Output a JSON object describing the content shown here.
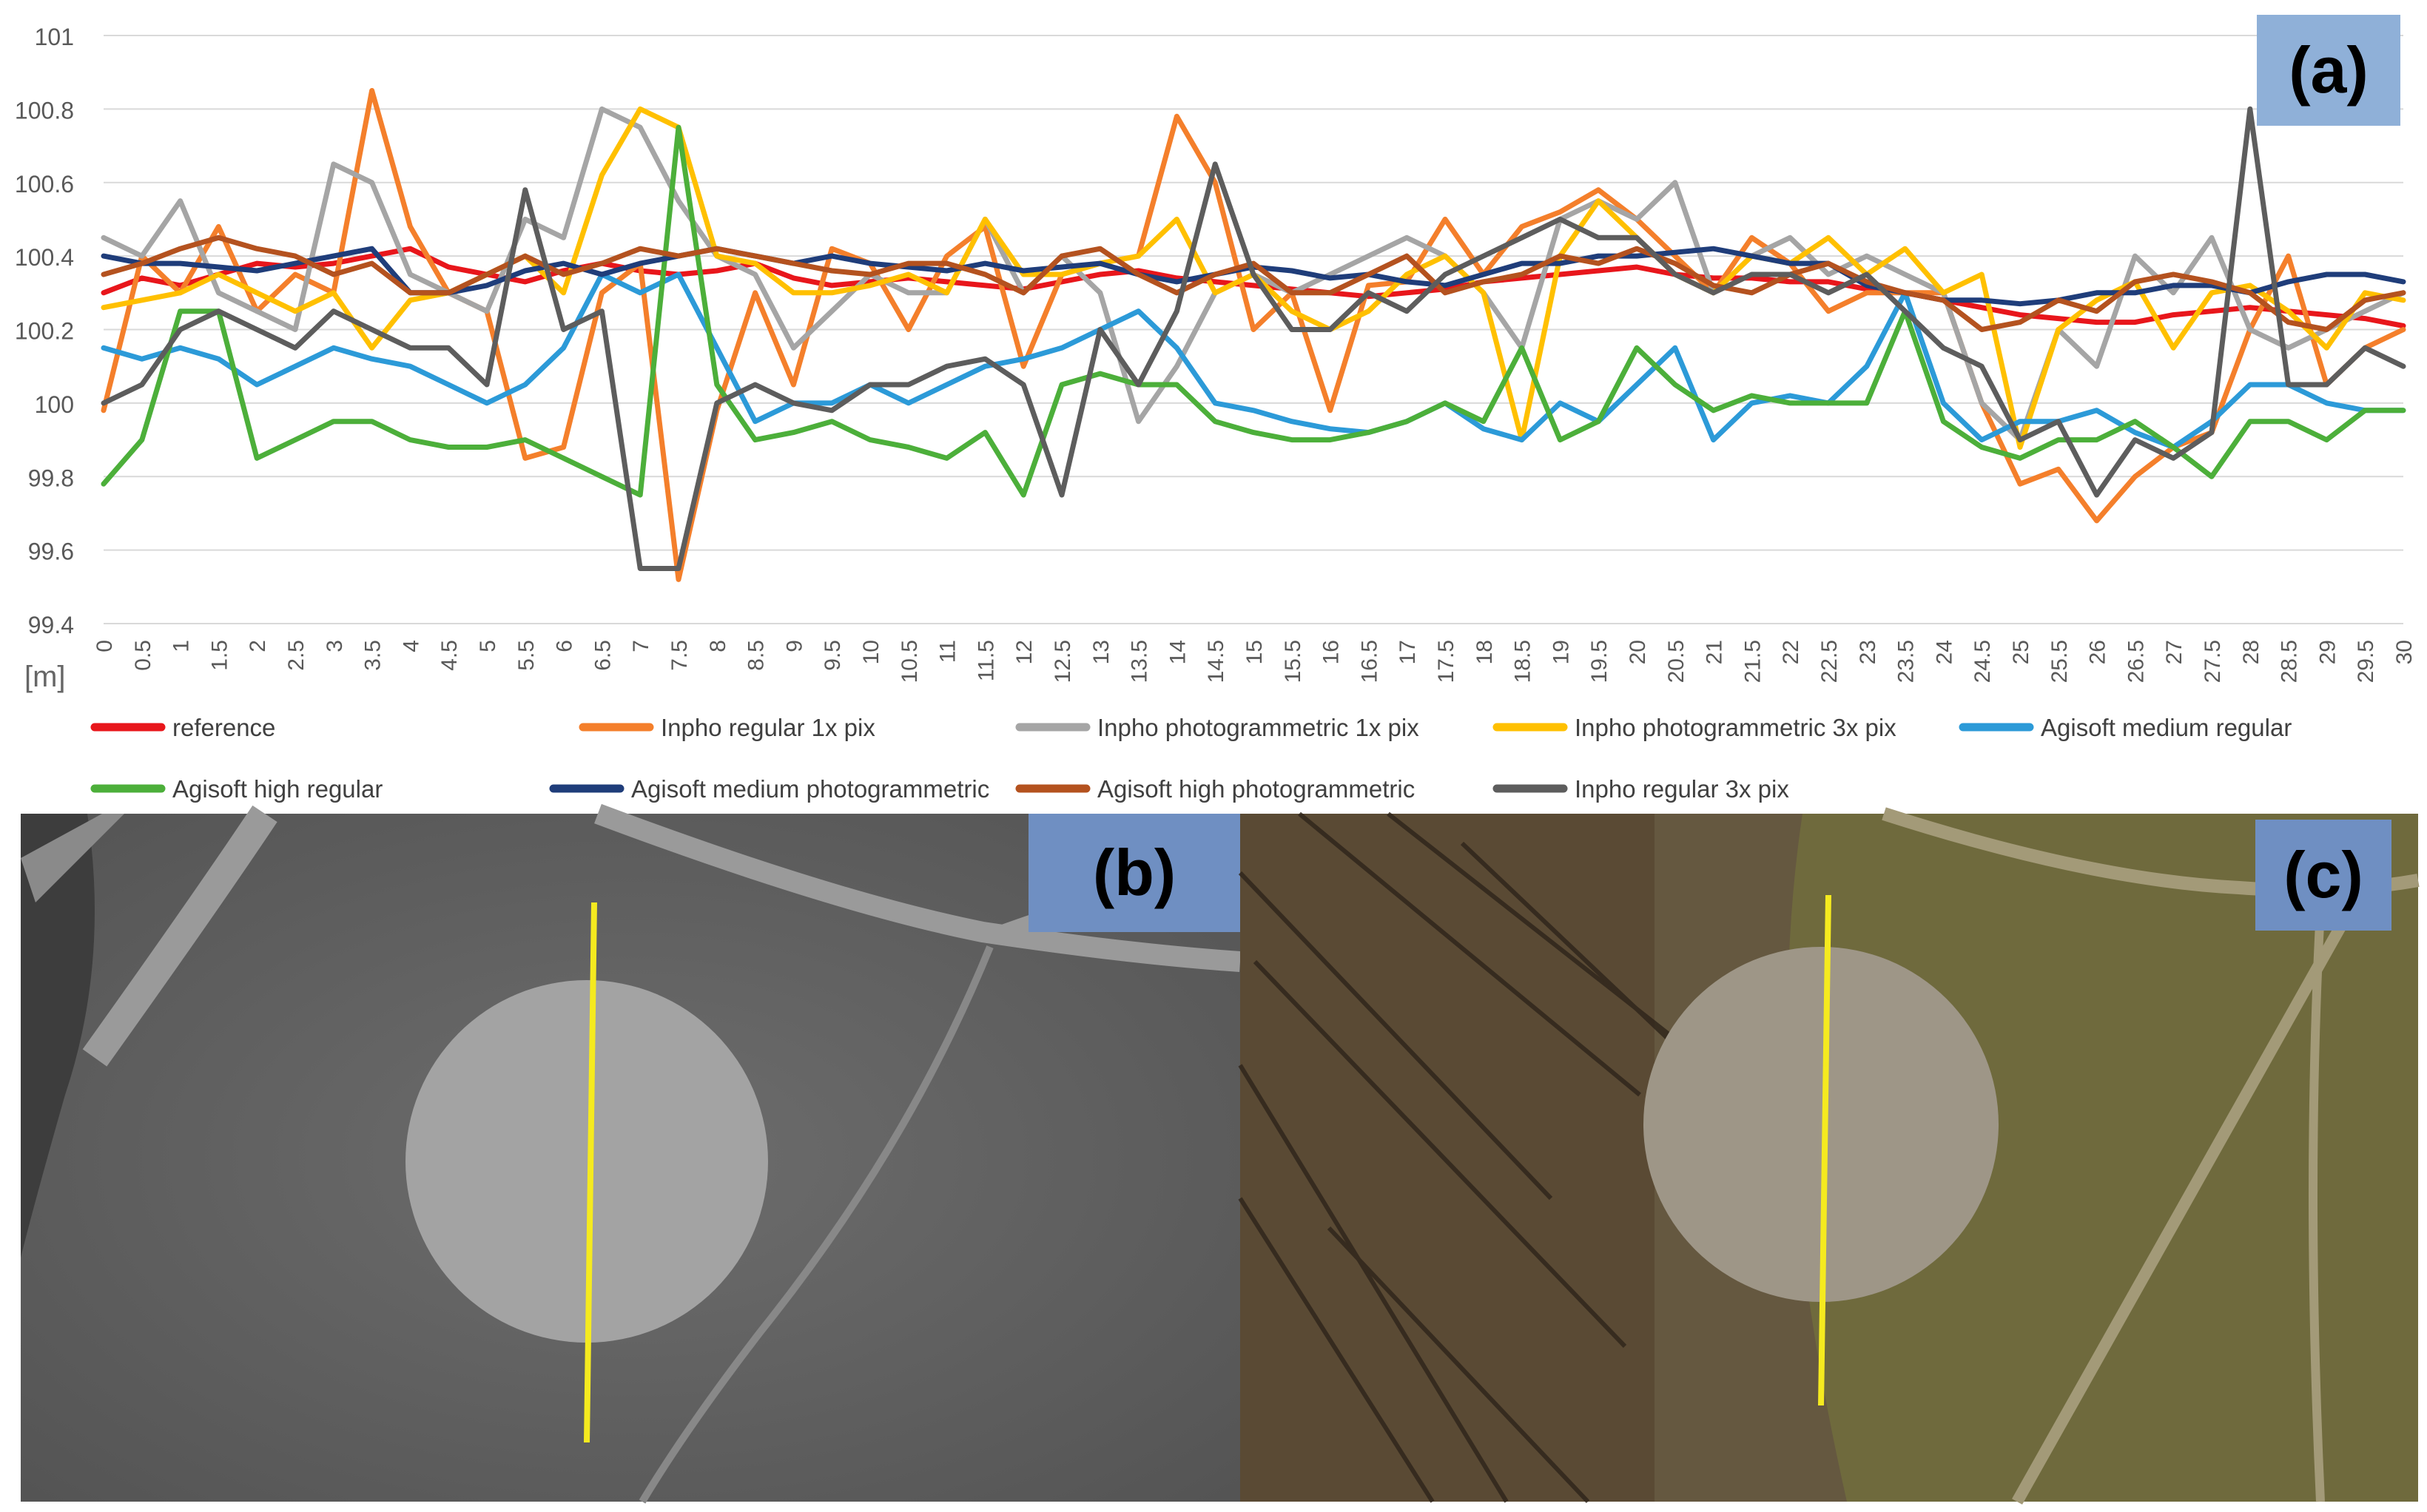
{
  "panels": {
    "a": "(a)",
    "b": "(b)",
    "c": "(c)"
  },
  "chart_data": {
    "type": "line",
    "title": "",
    "xlabel": "[m]",
    "ylabel": "",
    "xlim": [
      0,
      30
    ],
    "ylim": [
      99.4,
      101
    ],
    "y_ticks": [
      "99.4",
      "99.6",
      "99.8",
      "100",
      "100.2",
      "100.4",
      "100.6",
      "100.8",
      "101"
    ],
    "x_ticks": [
      "0",
      "0.5",
      "1",
      "1.5",
      "2",
      "2.5",
      "3",
      "3.5",
      "4",
      "4.5",
      "5",
      "5.5",
      "6",
      "6.5",
      "7",
      "7.5",
      "8",
      "8.5",
      "9",
      "9.5",
      "10",
      "10.5",
      "11",
      "11.5",
      "12",
      "12.5",
      "13",
      "13.5",
      "14",
      "14.5",
      "15",
      "15.5",
      "16",
      "16.5",
      "17",
      "17.5",
      "18",
      "18.5",
      "19",
      "19.5",
      "20",
      "20.5",
      "21",
      "21.5",
      "22",
      "22.5",
      "23",
      "23.5",
      "24",
      "24.5",
      "25",
      "25.5",
      "26",
      "26.5",
      "27",
      "27.5",
      "28",
      "28.5",
      "29",
      "29.5",
      "30"
    ],
    "grid": "horizontal",
    "legend": "bottom",
    "x": [
      0,
      0.5,
      1,
      1.5,
      2,
      2.5,
      3,
      3.5,
      4,
      4.5,
      5,
      5.5,
      6,
      6.5,
      7,
      7.5,
      8,
      8.5,
      9,
      9.5,
      10,
      10.5,
      11,
      11.5,
      12,
      12.5,
      13,
      13.5,
      14,
      14.5,
      15,
      15.5,
      16,
      16.5,
      17,
      17.5,
      18,
      18.5,
      19,
      19.5,
      20,
      20.5,
      21,
      21.5,
      22,
      22.5,
      23,
      23.5,
      24,
      24.5,
      25,
      25.5,
      26,
      26.5,
      27,
      27.5,
      28,
      28.5,
      29,
      29.5,
      30
    ],
    "series": [
      {
        "name": "reference",
        "color": "#e8161b",
        "values": [
          100.3,
          100.34,
          100.32,
          100.35,
          100.38,
          100.37,
          100.38,
          100.4,
          100.42,
          100.37,
          100.35,
          100.33,
          100.36,
          100.38,
          100.36,
          100.35,
          100.36,
          100.38,
          100.34,
          100.32,
          100.33,
          100.34,
          100.33,
          100.32,
          100.31,
          100.33,
          100.35,
          100.36,
          100.34,
          100.33,
          100.32,
          100.31,
          100.3,
          100.29,
          100.3,
          100.31,
          100.33,
          100.34,
          100.35,
          100.36,
          100.37,
          100.35,
          100.34,
          100.34,
          100.33,
          100.33,
          100.31,
          100.3,
          100.28,
          100.26,
          100.24,
          100.23,
          100.22,
          100.22,
          100.24,
          100.25,
          100.26,
          100.25,
          100.24,
          100.23,
          100.21
        ]
      },
      {
        "name": "Inpho regular 1x pix",
        "color": "#f47f2b",
        "values": [
          99.98,
          100.4,
          100.3,
          100.48,
          100.25,
          100.35,
          100.3,
          100.85,
          100.48,
          100.3,
          100.25,
          99.85,
          99.88,
          100.3,
          100.38,
          99.52,
          99.98,
          100.3,
          100.05,
          100.42,
          100.38,
          100.2,
          100.4,
          100.48,
          100.1,
          100.35,
          100.38,
          100.4,
          100.78,
          100.6,
          100.2,
          100.3,
          99.98,
          100.32,
          100.33,
          100.5,
          100.35,
          100.48,
          100.52,
          100.58,
          100.5,
          100.4,
          100.3,
          100.45,
          100.38,
          100.25,
          100.3,
          100.3,
          100.3,
          100.0,
          99.78,
          99.82,
          99.68,
          99.8,
          99.88,
          99.92,
          100.2,
          100.4,
          100.05,
          100.15,
          100.2
        ]
      },
      {
        "name": "Inpho photogrammetric 1x pix",
        "color": "#a5a5a5",
        "values": [
          100.45,
          100.4,
          100.55,
          100.3,
          100.25,
          100.2,
          100.65,
          100.6,
          100.35,
          100.3,
          100.25,
          100.5,
          100.45,
          100.8,
          100.75,
          100.55,
          100.4,
          100.35,
          100.15,
          100.25,
          100.35,
          100.3,
          100.3,
          100.5,
          100.3,
          100.4,
          100.3,
          99.95,
          100.1,
          100.3,
          100.35,
          100.3,
          100.35,
          100.4,
          100.45,
          100.4,
          100.3,
          100.15,
          100.5,
          100.55,
          100.5,
          100.6,
          100.3,
          100.4,
          100.45,
          100.35,
          100.4,
          100.35,
          100.3,
          100.0,
          99.9,
          100.2,
          100.1,
          100.4,
          100.3,
          100.45,
          100.2,
          100.15,
          100.2,
          100.25,
          100.3
        ]
      },
      {
        "name": "Inpho photogrammetric 3x pix",
        "color": "#ffc000",
        "values": [
          100.26,
          100.28,
          100.3,
          100.35,
          100.3,
          100.25,
          100.3,
          100.15,
          100.28,
          100.3,
          100.35,
          100.4,
          100.3,
          100.62,
          100.8,
          100.75,
          100.4,
          100.38,
          100.3,
          100.3,
          100.32,
          100.35,
          100.3,
          100.5,
          100.35,
          100.35,
          100.38,
          100.4,
          100.5,
          100.3,
          100.35,
          100.25,
          100.2,
          100.25,
          100.35,
          100.4,
          100.3,
          99.9,
          100.4,
          100.55,
          100.45,
          100.35,
          100.3,
          100.4,
          100.38,
          100.45,
          100.35,
          100.42,
          100.3,
          100.35,
          99.88,
          100.2,
          100.28,
          100.33,
          100.15,
          100.3,
          100.32,
          100.25,
          100.15,
          100.3,
          100.28
        ]
      },
      {
        "name": "Agisoft medium regular",
        "color": "#2c9ad8",
        "values": [
          100.15,
          100.12,
          100.15,
          100.12,
          100.05,
          100.1,
          100.15,
          100.12,
          100.1,
          100.05,
          100.0,
          100.05,
          100.15,
          100.35,
          100.3,
          100.35,
          100.15,
          99.95,
          100.0,
          100.0,
          100.05,
          100.0,
          100.05,
          100.1,
          100.12,
          100.15,
          100.2,
          100.25,
          100.15,
          100.0,
          99.98,
          99.95,
          99.93,
          99.92,
          99.95,
          100.0,
          99.93,
          99.9,
          100.0,
          99.95,
          100.05,
          100.15,
          99.9,
          100.0,
          100.02,
          100.0,
          100.1,
          100.3,
          100.0,
          99.9,
          99.95,
          99.95,
          99.98,
          99.92,
          99.88,
          99.95,
          100.05,
          100.05,
          100.0,
          99.98,
          99.98
        ]
      },
      {
        "name": "Agisoft high regular",
        "color": "#4caf3a",
        "values": [
          99.78,
          99.9,
          100.25,
          100.25,
          99.85,
          99.9,
          99.95,
          99.95,
          99.9,
          99.88,
          99.88,
          99.9,
          99.85,
          99.8,
          99.75,
          100.75,
          100.05,
          99.9,
          99.92,
          99.95,
          99.9,
          99.88,
          99.85,
          99.92,
          99.75,
          100.05,
          100.08,
          100.05,
          100.05,
          99.95,
          99.92,
          99.9,
          99.9,
          99.92,
          99.95,
          100.0,
          99.95,
          100.15,
          99.9,
          99.95,
          100.15,
          100.05,
          99.98,
          100.02,
          100.0,
          100.0,
          100.0,
          100.25,
          99.95,
          99.88,
          99.85,
          99.9,
          99.9,
          99.95,
          99.88,
          99.8,
          99.95,
          99.95,
          99.9,
          99.98,
          99.98
        ]
      },
      {
        "name": "Agisoft medium photogrammetric",
        "color": "#1f3d7a",
        "values": [
          100.4,
          100.38,
          100.38,
          100.37,
          100.36,
          100.38,
          100.4,
          100.42,
          100.3,
          100.3,
          100.32,
          100.36,
          100.38,
          100.35,
          100.38,
          100.4,
          100.42,
          100.4,
          100.38,
          100.4,
          100.38,
          100.37,
          100.36,
          100.38,
          100.36,
          100.37,
          100.38,
          100.35,
          100.33,
          100.35,
          100.37,
          100.36,
          100.34,
          100.35,
          100.33,
          100.32,
          100.35,
          100.38,
          100.38,
          100.4,
          100.4,
          100.41,
          100.42,
          100.4,
          100.38,
          100.38,
          100.32,
          100.3,
          100.28,
          100.28,
          100.27,
          100.28,
          100.3,
          100.3,
          100.32,
          100.32,
          100.3,
          100.33,
          100.35,
          100.35,
          100.33
        ]
      },
      {
        "name": "Agisoft high photogrammetric",
        "color": "#b4521f",
        "values": [
          100.35,
          100.38,
          100.42,
          100.45,
          100.42,
          100.4,
          100.35,
          100.38,
          100.3,
          100.3,
          100.35,
          100.4,
          100.35,
          100.38,
          100.42,
          100.4,
          100.42,
          100.4,
          100.38,
          100.36,
          100.35,
          100.38,
          100.38,
          100.35,
          100.3,
          100.4,
          100.42,
          100.35,
          100.3,
          100.35,
          100.38,
          100.3,
          100.3,
          100.35,
          100.4,
          100.3,
          100.33,
          100.35,
          100.4,
          100.38,
          100.42,
          100.38,
          100.32,
          100.3,
          100.35,
          100.38,
          100.33,
          100.3,
          100.28,
          100.2,
          100.22,
          100.28,
          100.25,
          100.33,
          100.35,
          100.33,
          100.3,
          100.22,
          100.2,
          100.28,
          100.3
        ]
      },
      {
        "name": "Inpho regular 3x pix",
        "color": "#5d5d5d",
        "values": [
          100.0,
          100.05,
          100.2,
          100.25,
          100.2,
          100.15,
          100.25,
          100.2,
          100.15,
          100.15,
          100.05,
          100.58,
          100.2,
          100.25,
          99.55,
          99.55,
          100.0,
          100.05,
          100.0,
          99.98,
          100.05,
          100.05,
          100.1,
          100.12,
          100.05,
          99.75,
          100.2,
          100.05,
          100.25,
          100.65,
          100.35,
          100.2,
          100.2,
          100.3,
          100.25,
          100.35,
          100.4,
          100.45,
          100.5,
          100.45,
          100.45,
          100.35,
          100.3,
          100.35,
          100.35,
          100.3,
          100.35,
          100.25,
          100.15,
          100.1,
          99.9,
          99.95,
          99.75,
          99.9,
          99.85,
          99.92,
          100.8,
          100.05,
          100.05,
          100.15,
          100.1
        ]
      }
    ]
  }
}
